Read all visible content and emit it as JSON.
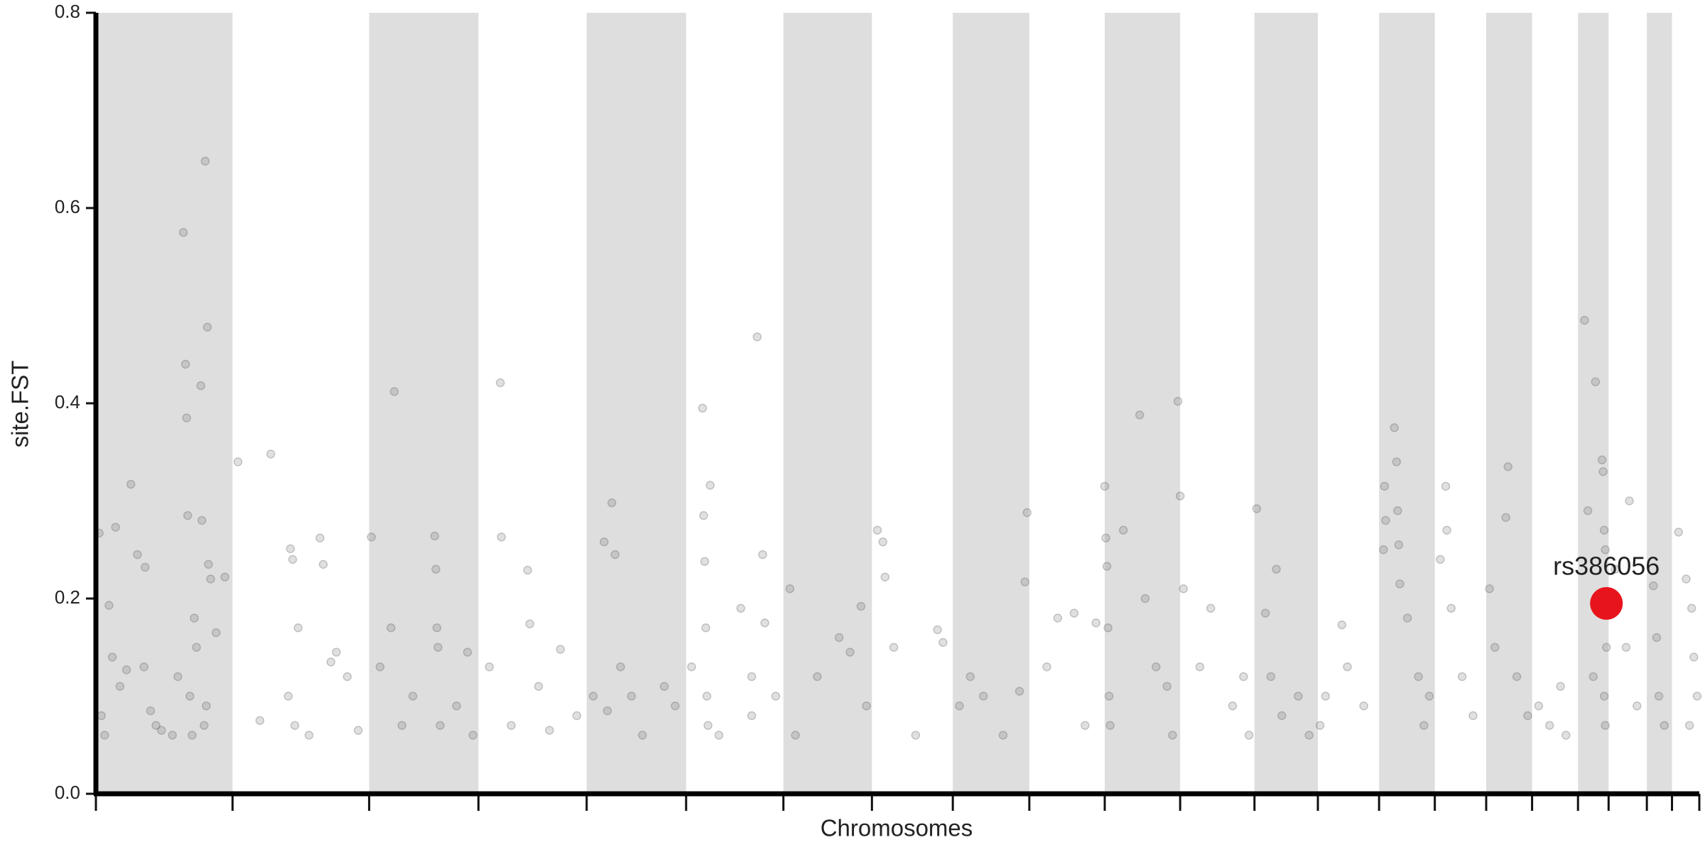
{
  "chart_data": {
    "type": "scatter",
    "x_label": "Chromosomes",
    "y_label": "site.FST",
    "ylim": [
      0,
      0.8
    ],
    "yticks": [
      {
        "value": 0,
        "label": "0.0"
      },
      0.2,
      0.4,
      0.6,
      0.8
    ],
    "xlim": [
      0,
      1467
    ],
    "chromosome_bounds": [
      0,
      125,
      250,
      350,
      449,
      540,
      629,
      710,
      784,
      854,
      923,
      992,
      1060,
      1118,
      1174,
      1225,
      1272,
      1314,
      1356,
      1384,
      1419,
      1442,
      1467
    ],
    "shade_color": "#dedede",
    "color": "#555555",
    "x": [
      3,
      5,
      8,
      12,
      15,
      18,
      22,
      28,
      32,
      38,
      45,
      50,
      55,
      44,
      80,
      82,
      83,
      84,
      90,
      96,
      97,
      100,
      102,
      103,
      101,
      99,
      86,
      88,
      92,
      105,
      110,
      118,
      60,
      70,
      75,
      130,
      160,
      178,
      180,
      185,
      176,
      182,
      205,
      208,
      215,
      220,
      230,
      240,
      150,
      195,
      252,
      260,
      270,
      273,
      280,
      310,
      311,
      312,
      313,
      315,
      340,
      345,
      290,
      330,
      370,
      371,
      380,
      395,
      397,
      405,
      415,
      425,
      440,
      360,
      455,
      465,
      468,
      472,
      475,
      480,
      490,
      500,
      520,
      530,
      545,
      555,
      556,
      557,
      558,
      559,
      560,
      562,
      570,
      590,
      600,
      605,
      610,
      612,
      622,
      600,
      635,
      640,
      660,
      680,
      700,
      705,
      690,
      715,
      720,
      722,
      730,
      750,
      770,
      775,
      790,
      800,
      812,
      830,
      845,
      850,
      852,
      870,
      880,
      895,
      905,
      915,
      923,
      924,
      925,
      926,
      927,
      928,
      940,
      955,
      960,
      970,
      980,
      985,
      990,
      992,
      995,
      1010,
      1020,
      1040,
      1050,
      1055,
      1062,
      1070,
      1075,
      1080,
      1085,
      1100,
      1110,
      1120,
      1125,
      1140,
      1145,
      1160,
      1178,
      1179,
      1180,
      1188,
      1190,
      1191,
      1192,
      1193,
      1200,
      1210,
      1215,
      1220,
      1230,
      1235,
      1236,
      1240,
      1250,
      1260,
      1275,
      1280,
      1290,
      1292,
      1300,
      1310,
      1320,
      1330,
      1340,
      1345,
      1362,
      1365,
      1372,
      1378,
      1379,
      1380,
      1381,
      1382,
      1380,
      1381,
      1370,
      1390,
      1403,
      1400,
      1410,
      1425,
      1428,
      1430,
      1435,
      1448,
      1455,
      1460,
      1462,
      1465,
      1458
    ],
    "values": [
      0.267,
      0.08,
      0.06,
      0.193,
      0.14,
      0.273,
      0.11,
      0.127,
      0.317,
      0.245,
      0.232,
      0.085,
      0.07,
      0.13,
      0.575,
      0.44,
      0.385,
      0.285,
      0.18,
      0.418,
      0.28,
      0.648,
      0.478,
      0.235,
      0.09,
      0.07,
      0.1,
      0.06,
      0.15,
      0.22,
      0.165,
      0.222,
      0.065,
      0.06,
      0.12,
      0.34,
      0.348,
      0.251,
      0.24,
      0.17,
      0.1,
      0.07,
      0.262,
      0.235,
      0.135,
      0.145,
      0.12,
      0.065,
      0.075,
      0.06,
      0.263,
      0.13,
      0.17,
      0.412,
      0.07,
      0.264,
      0.23,
      0.17,
      0.15,
      0.07,
      0.145,
      0.06,
      0.1,
      0.09,
      0.421,
      0.263,
      0.07,
      0.229,
      0.174,
      0.11,
      0.065,
      0.148,
      0.08,
      0.13,
      0.1,
      0.258,
      0.085,
      0.298,
      0.245,
      0.13,
      0.1,
      0.06,
      0.11,
      0.09,
      0.13,
      0.395,
      0.285,
      0.238,
      0.17,
      0.1,
      0.07,
      0.316,
      0.06,
      0.19,
      0.12,
      0.468,
      0.245,
      0.175,
      0.1,
      0.08,
      0.21,
      0.06,
      0.12,
      0.16,
      0.192,
      0.09,
      0.145,
      0.27,
      0.258,
      0.222,
      0.15,
      0.06,
      0.168,
      0.155,
      0.09,
      0.12,
      0.1,
      0.06,
      0.105,
      0.217,
      0.288,
      0.13,
      0.18,
      0.185,
      0.07,
      0.175,
      0.315,
      0.262,
      0.233,
      0.17,
      0.1,
      0.07,
      0.27,
      0.388,
      0.2,
      0.13,
      0.11,
      0.06,
      0.402,
      0.305,
      0.21,
      0.13,
      0.19,
      0.09,
      0.12,
      0.06,
      0.292,
      0.185,
      0.12,
      0.23,
      0.08,
      0.1,
      0.06,
      0.07,
      0.1,
      0.173,
      0.13,
      0.09,
      0.25,
      0.315,
      0.28,
      0.375,
      0.34,
      0.29,
      0.255,
      0.215,
      0.18,
      0.12,
      0.07,
      0.1,
      0.24,
      0.315,
      0.27,
      0.19,
      0.12,
      0.08,
      0.21,
      0.15,
      0.283,
      0.335,
      0.12,
      0.08,
      0.09,
      0.07,
      0.11,
      0.06,
      0.485,
      0.29,
      0.422,
      0.342,
      0.33,
      0.27,
      0.25,
      0.15,
      0.1,
      0.07,
      0.12,
      0.23,
      0.3,
      0.15,
      0.09,
      0.213,
      0.16,
      0.1,
      0.07,
      0.268,
      0.22,
      0.19,
      0.14,
      0.1,
      0.07
    ],
    "highlight": {
      "name": "rs386056",
      "x": 1382,
      "value": 0.195,
      "color": "#e8141b"
    }
  }
}
